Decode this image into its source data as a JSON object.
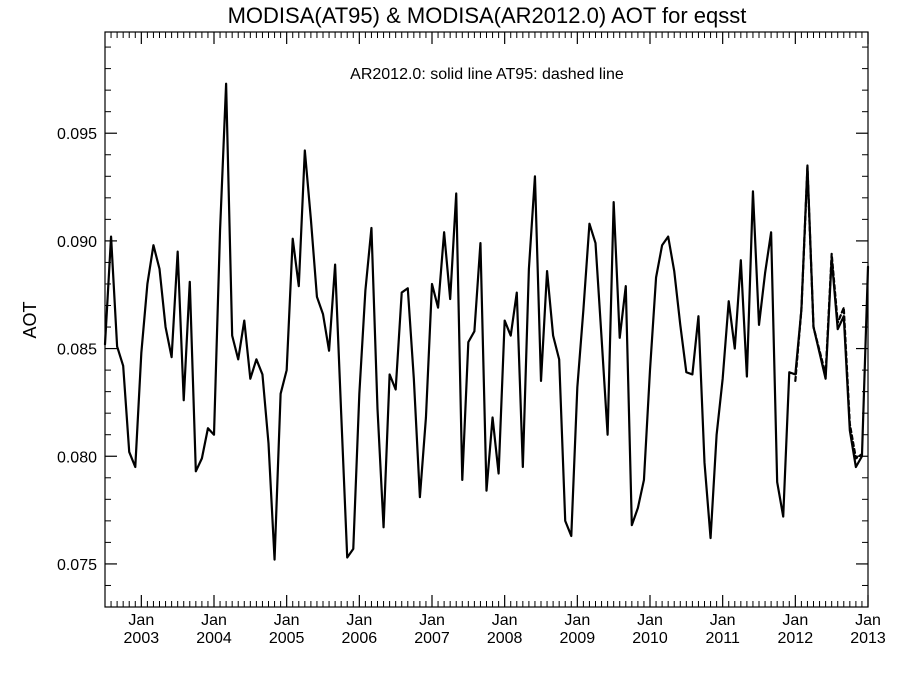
{
  "chart_data": {
    "type": "line",
    "title": "MODISA(AT95) & MODISA(AR2012.0)  AOT for eqsst",
    "annotation": "AR2012.0: solid line   AT95: dashed line",
    "ylabel": "AOT",
    "xlabel": "",
    "ylim": [
      0.073,
      0.0997
    ],
    "xlim": [
      "2002-07",
      "2013-01"
    ],
    "yticks": [
      {
        "value": 0.075,
        "label": "0.075"
      },
      {
        "value": 0.08,
        "label": "0.080"
      },
      {
        "value": 0.085,
        "label": "0.085"
      },
      {
        "value": 0.09,
        "label": "0.090"
      },
      {
        "value": 0.095,
        "label": "0.095"
      }
    ],
    "xticks": [
      {
        "date": "2003-01",
        "month": "Jan",
        "year": "2003"
      },
      {
        "date": "2004-01",
        "month": "Jan",
        "year": "2004"
      },
      {
        "date": "2005-01",
        "month": "Jan",
        "year": "2005"
      },
      {
        "date": "2006-01",
        "month": "Jan",
        "year": "2006"
      },
      {
        "date": "2007-01",
        "month": "Jan",
        "year": "2007"
      },
      {
        "date": "2008-01",
        "month": "Jan",
        "year": "2008"
      },
      {
        "date": "2009-01",
        "month": "Jan",
        "year": "2009"
      },
      {
        "date": "2010-01",
        "month": "Jan",
        "year": "2010"
      },
      {
        "date": "2011-01",
        "month": "Jan",
        "year": "2011"
      },
      {
        "date": "2012-01",
        "month": "Jan",
        "year": "2012"
      },
      {
        "date": "2013-01",
        "month": "Jan",
        "year": "2013"
      }
    ],
    "grid": false,
    "series": [
      {
        "name": "AR2012.0",
        "style": "solid",
        "color": "#000000",
        "points": [
          [
            "2002-07",
            0.0852
          ],
          [
            "2002-08",
            0.0902
          ],
          [
            "2002-09",
            0.0851
          ],
          [
            "2002-10",
            0.0842
          ],
          [
            "2002-11",
            0.0802
          ],
          [
            "2002-12",
            0.0795
          ],
          [
            "2003-01",
            0.0848
          ],
          [
            "2003-02",
            0.088
          ],
          [
            "2003-03",
            0.0898
          ],
          [
            "2003-04",
            0.0887
          ],
          [
            "2003-05",
            0.086
          ],
          [
            "2003-06",
            0.0846
          ],
          [
            "2003-07",
            0.0895
          ],
          [
            "2003-08",
            0.0826
          ],
          [
            "2003-09",
            0.0881
          ],
          [
            "2003-10",
            0.0793
          ],
          [
            "2003-11",
            0.0799
          ],
          [
            "2003-12",
            0.0813
          ],
          [
            "2004-01",
            0.081
          ],
          [
            "2004-02",
            0.0905
          ],
          [
            "2004-03",
            0.0973
          ],
          [
            "2004-04",
            0.0856
          ],
          [
            "2004-05",
            0.0845
          ],
          [
            "2004-06",
            0.0863
          ],
          [
            "2004-07",
            0.0836
          ],
          [
            "2004-08",
            0.0845
          ],
          [
            "2004-09",
            0.0838
          ],
          [
            "2004-10",
            0.0806
          ],
          [
            "2004-11",
            0.0752
          ],
          [
            "2004-12",
            0.0829
          ],
          [
            "2005-01",
            0.084
          ],
          [
            "2005-02",
            0.0901
          ],
          [
            "2005-03",
            0.0879
          ],
          [
            "2005-04",
            0.0942
          ],
          [
            "2005-05",
            0.091
          ],
          [
            "2005-06",
            0.0874
          ],
          [
            "2005-07",
            0.0866
          ],
          [
            "2005-08",
            0.0849
          ],
          [
            "2005-09",
            0.0889
          ],
          [
            "2005-10",
            0.082
          ],
          [
            "2005-11",
            0.0753
          ],
          [
            "2005-12",
            0.0757
          ],
          [
            "2006-01",
            0.0829
          ],
          [
            "2006-02",
            0.0877
          ],
          [
            "2006-03",
            0.0906
          ],
          [
            "2006-04",
            0.0822
          ],
          [
            "2006-05",
            0.0767
          ],
          [
            "2006-06",
            0.0838
          ],
          [
            "2006-07",
            0.0831
          ],
          [
            "2006-08",
            0.0876
          ],
          [
            "2006-09",
            0.0878
          ],
          [
            "2006-10",
            0.0836
          ],
          [
            "2006-11",
            0.0781
          ],
          [
            "2006-12",
            0.0818
          ],
          [
            "2007-01",
            0.088
          ],
          [
            "2007-02",
            0.0869
          ],
          [
            "2007-03",
            0.0904
          ],
          [
            "2007-04",
            0.0873
          ],
          [
            "2007-05",
            0.0922
          ],
          [
            "2007-06",
            0.0789
          ],
          [
            "2007-07",
            0.0853
          ],
          [
            "2007-08",
            0.0858
          ],
          [
            "2007-09",
            0.0899
          ],
          [
            "2007-10",
            0.0784
          ],
          [
            "2007-11",
            0.0818
          ],
          [
            "2007-12",
            0.0792
          ],
          [
            "2008-01",
            0.0863
          ],
          [
            "2008-02",
            0.0856
          ],
          [
            "2008-03",
            0.0876
          ],
          [
            "2008-04",
            0.0795
          ],
          [
            "2008-05",
            0.0887
          ],
          [
            "2008-06",
            0.093
          ],
          [
            "2008-07",
            0.0835
          ],
          [
            "2008-08",
            0.0886
          ],
          [
            "2008-09",
            0.0856
          ],
          [
            "2008-10",
            0.0845
          ],
          [
            "2008-11",
            0.077
          ],
          [
            "2008-12",
            0.0763
          ],
          [
            "2009-01",
            0.0832
          ],
          [
            "2009-02",
            0.0868
          ],
          [
            "2009-03",
            0.0908
          ],
          [
            "2009-04",
            0.0899
          ],
          [
            "2009-05",
            0.0855
          ],
          [
            "2009-06",
            0.081
          ],
          [
            "2009-07",
            0.0918
          ],
          [
            "2009-08",
            0.0855
          ],
          [
            "2009-09",
            0.0879
          ],
          [
            "2009-10",
            0.0768
          ],
          [
            "2009-11",
            0.0776
          ],
          [
            "2009-12",
            0.0789
          ],
          [
            "2010-01",
            0.084
          ],
          [
            "2010-02",
            0.0883
          ],
          [
            "2010-03",
            0.0898
          ],
          [
            "2010-04",
            0.0902
          ],
          [
            "2010-05",
            0.0886
          ],
          [
            "2010-06",
            0.0861
          ],
          [
            "2010-07",
            0.0839
          ],
          [
            "2010-08",
            0.0838
          ],
          [
            "2010-09",
            0.0865
          ],
          [
            "2010-10",
            0.0797
          ],
          [
            "2010-11",
            0.0762
          ],
          [
            "2010-12",
            0.081
          ],
          [
            "2011-01",
            0.0836
          ],
          [
            "2011-02",
            0.0872
          ],
          [
            "2011-03",
            0.085
          ],
          [
            "2011-04",
            0.0891
          ],
          [
            "2011-05",
            0.0837
          ],
          [
            "2011-06",
            0.0923
          ],
          [
            "2011-07",
            0.0861
          ],
          [
            "2011-08",
            0.0885
          ],
          [
            "2011-09",
            0.0904
          ],
          [
            "2011-10",
            0.0788
          ],
          [
            "2011-11",
            0.0772
          ],
          [
            "2011-12",
            0.0839
          ],
          [
            "2012-01",
            0.0838
          ],
          [
            "2012-02",
            0.0868
          ],
          [
            "2012-03",
            0.0935
          ],
          [
            "2012-04",
            0.086
          ],
          [
            "2012-05",
            0.0848
          ],
          [
            "2012-06",
            0.0836
          ],
          [
            "2012-07",
            0.0892
          ],
          [
            "2012-08",
            0.0859
          ],
          [
            "2012-09",
            0.0865
          ],
          [
            "2012-10",
            0.0812
          ],
          [
            "2012-11",
            0.0795
          ],
          [
            "2012-12",
            0.08
          ],
          [
            "2013-01",
            0.0888
          ]
        ]
      },
      {
        "name": "AT95",
        "style": "dashed",
        "color": "#000000",
        "points": [
          [
            "2012-01",
            0.0835
          ],
          [
            "2012-02",
            0.0868
          ],
          [
            "2012-03",
            0.0934
          ],
          [
            "2012-04",
            0.086
          ],
          [
            "2012-05",
            0.0849
          ],
          [
            "2012-06",
            0.0838
          ],
          [
            "2012-07",
            0.0894
          ],
          [
            "2012-08",
            0.0862
          ],
          [
            "2012-09",
            0.0869
          ],
          [
            "2012-10",
            0.0815
          ],
          [
            "2012-11",
            0.0799
          ],
          [
            "2012-12",
            0.0801
          ]
        ]
      }
    ]
  }
}
